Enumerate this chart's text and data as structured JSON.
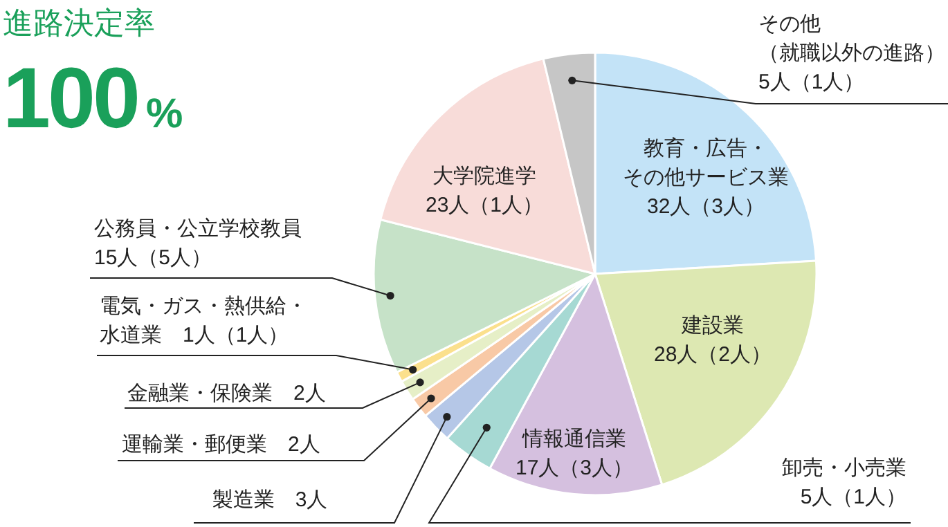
{
  "chart_data": {
    "type": "pie",
    "title": "進路決定率",
    "subtitle": "100%",
    "categories": [
      "教育・広告・その他サービス業",
      "建設業",
      "情報通信業",
      "卸売・小売業",
      "製造業",
      "運輸業・郵便業",
      "金融業・保険業",
      "電気・ガス・熱供給・水道業",
      "公務員・公立学校教員",
      "大学院進学",
      "その他（就職以外の進路）"
    ],
    "values": [
      32,
      28,
      17,
      5,
      3,
      2,
      2,
      1,
      15,
      23,
      5
    ],
    "value_labels": [
      "32人（3人）",
      "28人（2人）",
      "17人（3人）",
      "5人（1人）",
      "3人",
      "2人",
      "2人",
      "1人（1人）",
      "15人（5人）",
      "23人（1人）",
      "5人（1人）"
    ],
    "colors": [
      "#c3e3f7",
      "#dde8b2",
      "#d5c0df",
      "#a6d9d3",
      "#b5c7e7",
      "#f8c9a6",
      "#e6efc7",
      "#fbe08d",
      "#c6e2c8",
      "#f8dcd9",
      "#c6c6c6"
    ]
  }
}
